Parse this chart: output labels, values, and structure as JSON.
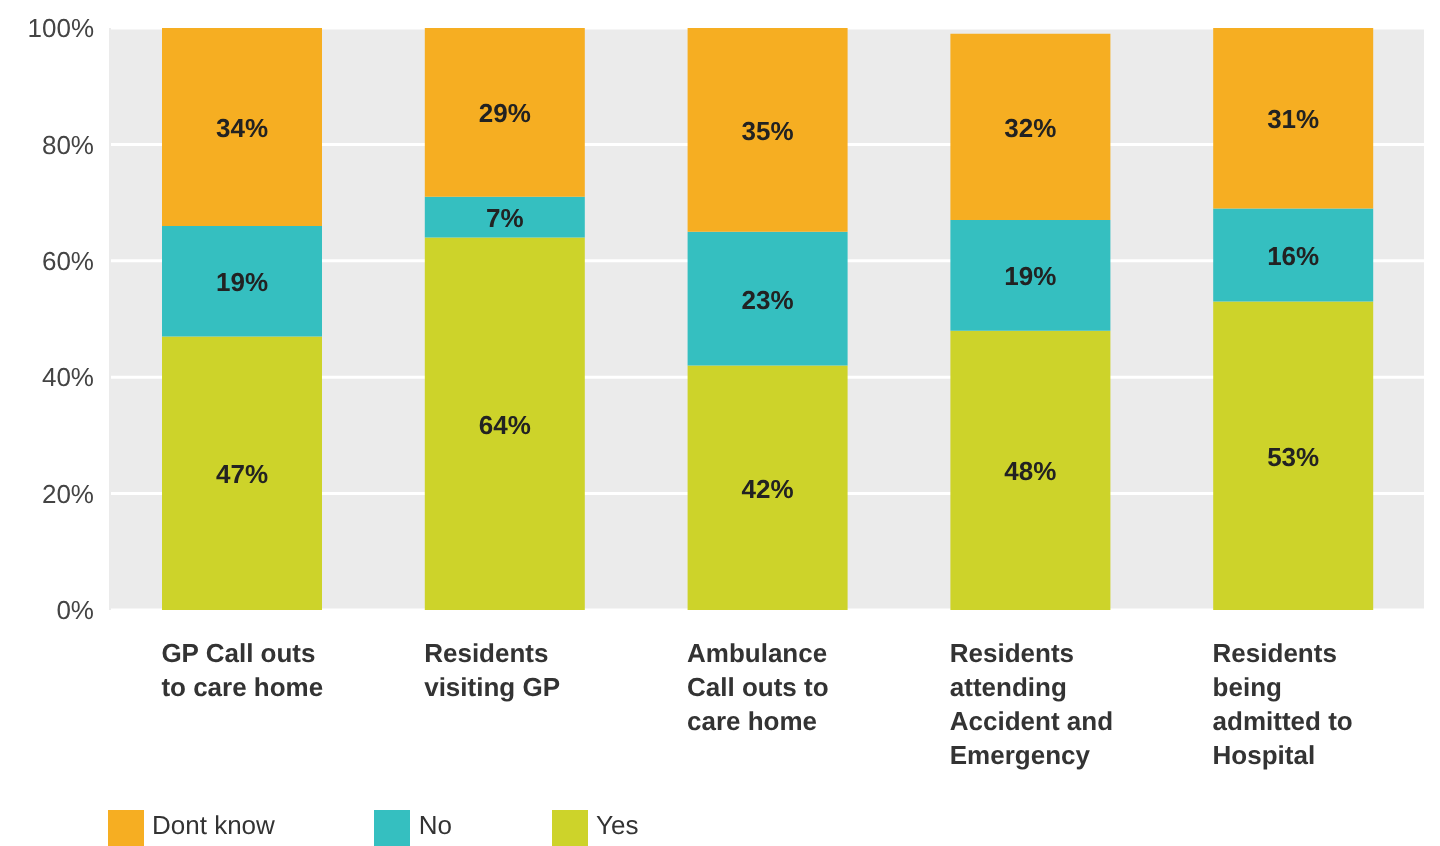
{
  "chart_data": {
    "type": "bar",
    "stacked": true,
    "categories": [
      "GP Call outs to care home",
      "Residents visiting GP",
      "Ambulance Call outs to care home",
      "Residents attending Accident and Emergency",
      "Residents being admitted to Hospital"
    ],
    "series": [
      {
        "name": "Yes",
        "color": "#cdd32a",
        "values": [
          47,
          64,
          42,
          48,
          53
        ],
        "value_labels": [
          "47%",
          "64%",
          "42%",
          "48%",
          "53%"
        ]
      },
      {
        "name": "No",
        "color": "#35bfc0",
        "values": [
          19,
          7,
          23,
          19,
          16
        ],
        "value_labels": [
          "19%",
          "7%",
          "23%",
          "19%",
          "16%"
        ]
      },
      {
        "name": "Dont know",
        "color": "#f6ae22",
        "values": [
          34,
          29,
          35,
          32,
          31
        ],
        "value_labels": [
          "34%",
          "29%",
          "35%",
          "32%",
          "31%"
        ]
      }
    ],
    "ylim": [
      0,
      100
    ],
    "yticks": [
      {
        "value": 0,
        "label": "0%"
      },
      {
        "value": 20,
        "label": "20%"
      },
      {
        "value": 40,
        "label": "40%"
      },
      {
        "value": 60,
        "label": "60%"
      },
      {
        "value": 80,
        "label": "80%"
      },
      {
        "value": 100,
        "label": "100%"
      }
    ],
    "grid": "y",
    "legend": "bottom left"
  }
}
